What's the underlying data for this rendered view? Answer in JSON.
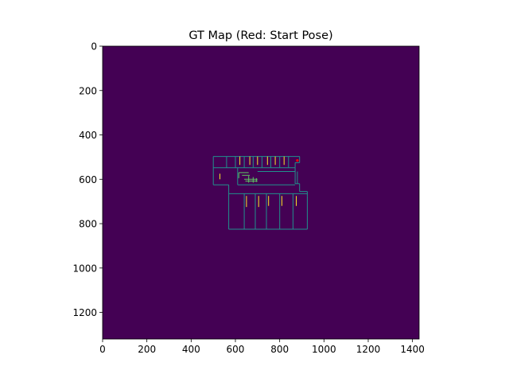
{
  "chart_data": {
    "type": "heatmap",
    "title": "GT Map (Red: Start Pose)",
    "xlim": [
      0,
      1430
    ],
    "ylim": [
      0,
      1320
    ],
    "y_inverted": true,
    "x_ticks": [
      0,
      200,
      400,
      600,
      800,
      1000,
      1200,
      1400
    ],
    "y_ticks": [
      0,
      200,
      400,
      600,
      800,
      1000,
      1200
    ],
    "colormap": "viridis",
    "background_color": "#440154",
    "wall_color": "#21918c",
    "feature_color": "#5ec962",
    "door_color": "#fde725",
    "start_pose": {
      "x": 880,
      "y": 515,
      "color": "#ff0000"
    },
    "walls": [
      [
        [
          500,
          497
        ],
        [
          890,
          497
        ]
      ],
      [
        [
          500,
          497
        ],
        [
          500,
          625
        ]
      ],
      [
        [
          500,
          548
        ],
        [
          870,
          548
        ]
      ],
      [
        [
          500,
          625
        ],
        [
          570,
          625
        ]
      ],
      [
        [
          570,
          625
        ],
        [
          570,
          660
        ]
      ],
      [
        [
          890,
          497
        ],
        [
          890,
          525
        ]
      ],
      [
        [
          870,
          525
        ],
        [
          890,
          525
        ]
      ],
      [
        [
          870,
          525
        ],
        [
          870,
          548
        ]
      ],
      [
        [
          870,
          548
        ],
        [
          870,
          620
        ]
      ],
      [
        [
          870,
          620
        ],
        [
          890,
          620
        ]
      ],
      [
        [
          890,
          620
        ],
        [
          890,
          655
        ]
      ],
      [
        [
          890,
          655
        ],
        [
          925,
          655
        ]
      ],
      [
        [
          925,
          655
        ],
        [
          925,
          675
        ]
      ],
      [
        [
          570,
          665
        ],
        [
          925,
          665
        ]
      ],
      [
        [
          570,
          660
        ],
        [
          570,
          825
        ]
      ],
      [
        [
          570,
          825
        ],
        [
          925,
          825
        ]
      ],
      [
        [
          925,
          675
        ],
        [
          925,
          825
        ]
      ],
      [
        [
          610,
          548
        ],
        [
          610,
          625
        ]
      ],
      [
        [
          610,
          625
        ],
        [
          870,
          625
        ]
      ],
      [
        [
          700,
          565
        ],
        [
          870,
          565
        ]
      ],
      [
        [
          640,
          665
        ],
        [
          640,
          825
        ]
      ],
      [
        [
          690,
          665
        ],
        [
          690,
          825
        ]
      ],
      [
        [
          740,
          665
        ],
        [
          740,
          825
        ]
      ],
      [
        [
          800,
          665
        ],
        [
          800,
          825
        ]
      ],
      [
        [
          860,
          665
        ],
        [
          860,
          825
        ]
      ],
      [
        [
          560,
          497
        ],
        [
          560,
          548
        ]
      ],
      [
        [
          600,
          497
        ],
        [
          600,
          548
        ]
      ],
      [
        [
          640,
          497
        ],
        [
          640,
          548
        ]
      ],
      [
        [
          680,
          497
        ],
        [
          680,
          548
        ]
      ],
      [
        [
          720,
          497
        ],
        [
          720,
          548
        ]
      ],
      [
        [
          760,
          497
        ],
        [
          760,
          548
        ]
      ],
      [
        [
          800,
          497
        ],
        [
          800,
          548
        ]
      ],
      [
        [
          840,
          497
        ],
        [
          840,
          548
        ]
      ],
      [
        [
          880,
          565
        ],
        [
          880,
          620
        ]
      ]
    ],
    "doors": [
      [
        [
          620,
          497
        ],
        [
          620,
          535
        ]
      ],
      [
        [
          665,
          497
        ],
        [
          665,
          535
        ]
      ],
      [
        [
          700,
          497
        ],
        [
          700,
          535
        ]
      ],
      [
        [
          745,
          497
        ],
        [
          745,
          535
        ]
      ],
      [
        [
          780,
          497
        ],
        [
          780,
          535
        ]
      ],
      [
        [
          820,
          497
        ],
        [
          820,
          535
        ]
      ],
      [
        [
          650,
          675
        ],
        [
          650,
          725
        ]
      ],
      [
        [
          705,
          675
        ],
        [
          705,
          725
        ]
      ],
      [
        [
          750,
          675
        ],
        [
          750,
          720
        ]
      ],
      [
        [
          810,
          675
        ],
        [
          810,
          720
        ]
      ],
      [
        [
          875,
          675
        ],
        [
          875,
          720
        ]
      ],
      [
        [
          530,
          575
        ],
        [
          530,
          600
        ]
      ]
    ],
    "features": [
      [
        [
          615,
          570
        ],
        [
          660,
          570
        ]
      ],
      [
        [
          615,
          570
        ],
        [
          615,
          595
        ]
      ],
      [
        [
          630,
          582
        ],
        [
          665,
          582
        ]
      ],
      [
        [
          640,
          600
        ],
        [
          700,
          600
        ]
      ],
      [
        [
          645,
          608
        ],
        [
          700,
          608
        ]
      ],
      [
        [
          660,
          585
        ],
        [
          660,
          615
        ]
      ],
      [
        [
          680,
          590
        ],
        [
          680,
          615
        ]
      ],
      [
        [
          695,
          595
        ],
        [
          695,
          612
        ]
      ]
    ]
  }
}
